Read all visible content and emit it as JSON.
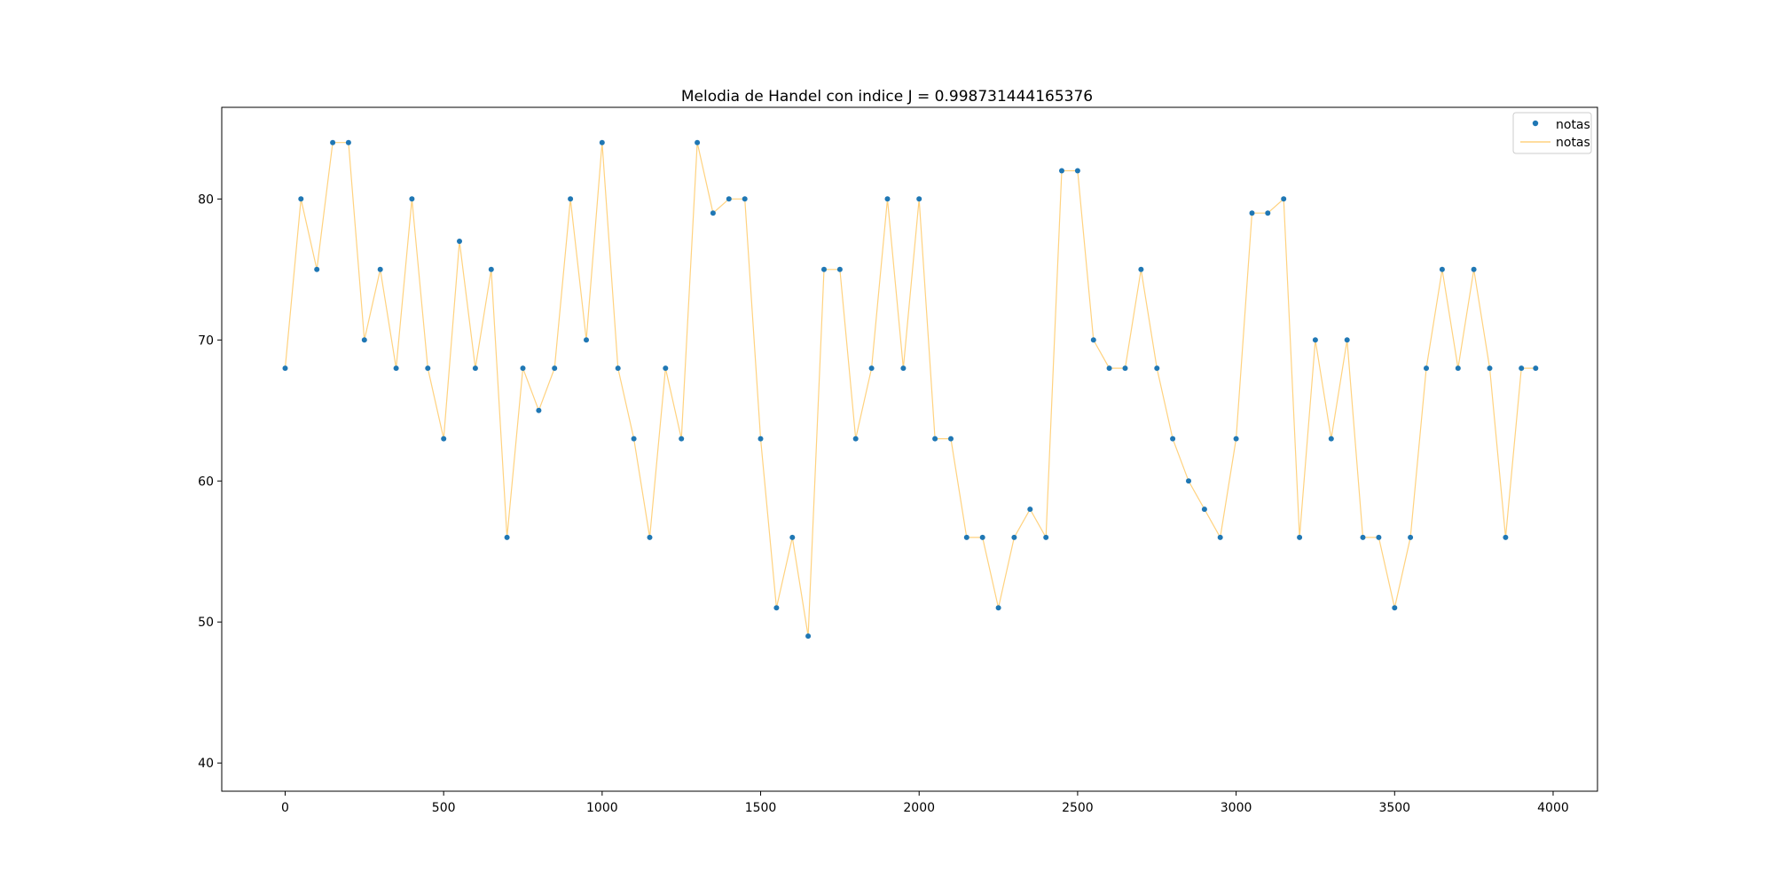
{
  "chart_data": {
    "type": "line",
    "title": "Melodia de Handel con indice J = 0.998731444165376",
    "xlabel": "",
    "ylabel": "",
    "xlim": [
      -200,
      4140
    ],
    "ylim": [
      38,
      86.5
    ],
    "x_ticks": [
      0,
      500,
      1000,
      1500,
      2000,
      2500,
      3000,
      3500,
      4000
    ],
    "y_ticks": [
      40,
      50,
      60,
      70,
      80
    ],
    "grid": false,
    "legend_position": "top-right",
    "legend": [
      {
        "label": "notas",
        "marker": "point",
        "color": "#1f77b4"
      },
      {
        "label": "notas",
        "marker": "line",
        "color": "#ffd27f"
      }
    ],
    "series": [
      {
        "name": "notas",
        "style": "markers",
        "color": "#1f77b4",
        "x": [
          0,
          50,
          100,
          150,
          200,
          250,
          300,
          350,
          400,
          450,
          500,
          550,
          600,
          650,
          700,
          750,
          800,
          850,
          900,
          950,
          1000,
          1050,
          1100,
          1150,
          1200,
          1250,
          1300,
          1350,
          1400,
          1450,
          1500,
          1550,
          1600,
          1650,
          1700,
          1750,
          1800,
          1850,
          1900,
          1950,
          2000,
          2050,
          2100,
          2150,
          2200,
          2250,
          2300,
          2350,
          2400,
          2450,
          2500,
          2550,
          2600,
          2650,
          2700,
          2750,
          2800,
          2850,
          2900,
          2950,
          3000,
          3050,
          3100,
          3150,
          3200,
          3250,
          3300,
          3350,
          3400,
          3450,
          3500,
          3550,
          3600,
          3650,
          3700,
          3750,
          3800,
          3850,
          3900,
          3945
        ],
        "y": [
          68,
          80,
          75,
          84,
          84,
          70,
          75,
          68,
          80,
          68,
          63,
          77,
          68,
          75,
          56,
          68,
          65,
          68,
          80,
          70,
          84,
          68,
          63,
          56,
          68,
          63,
          84,
          79,
          80,
          80,
          63,
          51,
          56,
          49,
          75,
          75,
          63,
          68,
          80,
          68,
          80,
          63,
          63,
          56,
          56,
          51,
          56,
          58,
          56,
          82,
          82,
          70,
          68,
          68,
          75,
          68,
          63,
          60,
          58,
          56,
          63,
          79,
          79,
          80,
          56,
          70,
          63,
          70,
          56,
          56,
          51,
          56,
          68,
          75,
          68,
          75,
          68,
          56,
          68,
          68
        ]
      },
      {
        "name": "notas",
        "style": "line",
        "color": "#ffd27f",
        "x": [
          0,
          50,
          100,
          150,
          200,
          250,
          300,
          350,
          400,
          450,
          500,
          550,
          600,
          650,
          700,
          750,
          800,
          850,
          900,
          950,
          1000,
          1050,
          1100,
          1150,
          1200,
          1250,
          1300,
          1350,
          1400,
          1450,
          1500,
          1550,
          1600,
          1650,
          1700,
          1750,
          1800,
          1850,
          1900,
          1950,
          2000,
          2050,
          2100,
          2150,
          2200,
          2250,
          2300,
          2350,
          2400,
          2450,
          2500,
          2550,
          2600,
          2650,
          2700,
          2750,
          2800,
          2850,
          2900,
          2950,
          3000,
          3050,
          3100,
          3150,
          3200,
          3250,
          3300,
          3350,
          3400,
          3450,
          3500,
          3550,
          3600,
          3650,
          3700,
          3750,
          3800,
          3850,
          3900,
          3945
        ],
        "y": [
          68,
          80,
          75,
          84,
          84,
          70,
          75,
          68,
          80,
          68,
          63,
          77,
          68,
          75,
          56,
          68,
          65,
          68,
          80,
          70,
          84,
          68,
          63,
          56,
          68,
          63,
          84,
          79,
          80,
          80,
          63,
          51,
          56,
          49,
          75,
          75,
          63,
          68,
          80,
          68,
          80,
          63,
          63,
          56,
          56,
          51,
          56,
          58,
          56,
          82,
          82,
          70,
          68,
          68,
          75,
          68,
          63,
          60,
          58,
          56,
          63,
          79,
          79,
          80,
          56,
          70,
          63,
          70,
          56,
          56,
          51,
          56,
          68,
          75,
          68,
          75,
          68,
          56,
          68,
          68
        ]
      }
    ]
  }
}
